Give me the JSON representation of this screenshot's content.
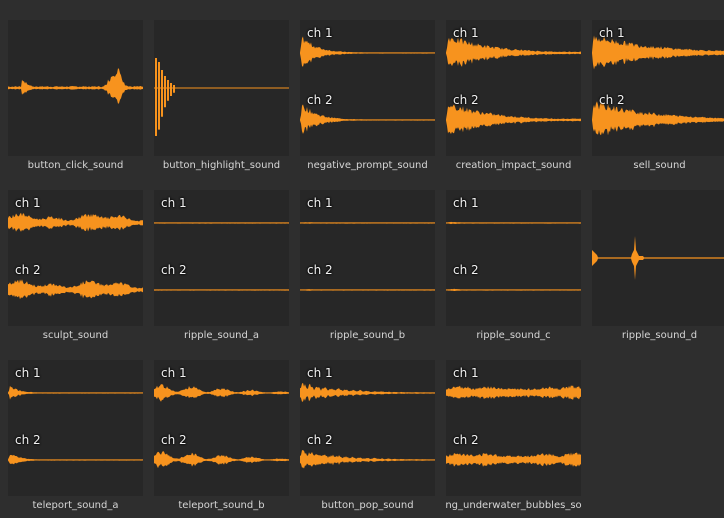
{
  "accent_color": "#f7931e",
  "channel_labels": {
    "ch1": "ch 1",
    "ch2": "ch 2"
  },
  "assets": [
    {
      "name": "button_click_sound",
      "channels": 1
    },
    {
      "name": "button_highlight_sound",
      "channels": 1
    },
    {
      "name": "negative_prompt_sound",
      "channels": 2
    },
    {
      "name": "creation_impact_sound",
      "channels": 2
    },
    {
      "name": "sell_sound",
      "channels": 2
    },
    {
      "name": "sculpt_sound",
      "channels": 2
    },
    {
      "name": "ripple_sound_a",
      "channels": 2
    },
    {
      "name": "ripple_sound_b",
      "channels": 2
    },
    {
      "name": "ripple_sound_c",
      "channels": 2
    },
    {
      "name": "ripple_sound_d",
      "channels": 1
    },
    {
      "name": "teleport_sound_a",
      "channels": 2
    },
    {
      "name": "teleport_sound_b",
      "channels": 2
    },
    {
      "name": "button_pop_sound",
      "channels": 2
    },
    {
      "name": "ng_underwater_bubbles_so",
      "channels": 2
    }
  ]
}
